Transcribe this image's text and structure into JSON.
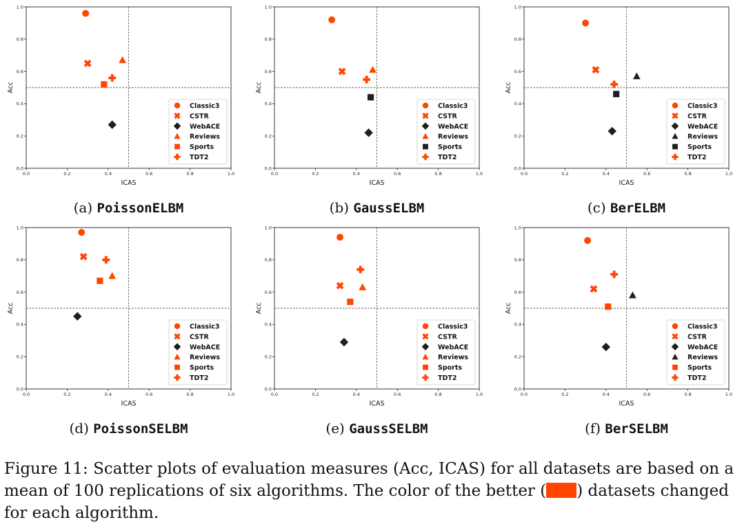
{
  "colors": {
    "better": "#ff4500",
    "worse": "#1f1f1f",
    "axis": "#222222",
    "guide": "#555555"
  },
  "legend_icons": [
    "circle",
    "x-mark",
    "diamond",
    "triangle",
    "square",
    "plus"
  ],
  "chart_data": [
    {
      "type": "scatter",
      "xlabel": "ICAS",
      "ylabel": "Acc",
      "xlim": [
        0,
        1
      ],
      "ylim": [
        0,
        1
      ],
      "xticks": [
        "0.0",
        "0.2",
        "0.4",
        "0.6",
        "0.8",
        "1.0"
      ],
      "yticks": [
        "0.0",
        "0.2",
        "0.4",
        "0.6",
        "0.8",
        "1.0"
      ],
      "thresholds": {
        "x": 0.5,
        "y": 0.5
      },
      "legend_position": "lower right",
      "subcaption": {
        "label": "(a)",
        "method": "PoissonELBM"
      },
      "series": [
        {
          "name": "Classic3",
          "marker": "circle",
          "x": 0.29,
          "y": 0.96,
          "color": "#ff4500"
        },
        {
          "name": "CSTR",
          "marker": "x",
          "x": 0.3,
          "y": 0.65,
          "color": "#ff4500"
        },
        {
          "name": "WebACE",
          "marker": "diamond",
          "x": 0.42,
          "y": 0.27,
          "color": "#1f1f1f"
        },
        {
          "name": "Reviews",
          "marker": "triangle",
          "x": 0.47,
          "y": 0.67,
          "color": "#ff4500"
        },
        {
          "name": "Sports",
          "marker": "square",
          "x": 0.38,
          "y": 0.52,
          "color": "#ff4500"
        },
        {
          "name": "TDT2",
          "marker": "plus",
          "x": 0.42,
          "y": 0.56,
          "color": "#ff4500"
        }
      ]
    },
    {
      "type": "scatter",
      "xlabel": "ICAS",
      "ylabel": "Acc",
      "xlim": [
        0,
        1
      ],
      "ylim": [
        0,
        1
      ],
      "xticks": [
        "0.0",
        "0.2",
        "0.4",
        "0.6",
        "0.8",
        "1.0"
      ],
      "yticks": [
        "0.0",
        "0.2",
        "0.4",
        "0.6",
        "0.8",
        "1.0"
      ],
      "thresholds": {
        "x": 0.5,
        "y": 0.5
      },
      "legend_position": "lower right",
      "subcaption": {
        "label": "(b)",
        "method": "GaussELBM"
      },
      "series": [
        {
          "name": "Classic3",
          "marker": "circle",
          "x": 0.28,
          "y": 0.92,
          "color": "#ff4500"
        },
        {
          "name": "CSTR",
          "marker": "x",
          "x": 0.33,
          "y": 0.6,
          "color": "#ff4500"
        },
        {
          "name": "WebACE",
          "marker": "diamond",
          "x": 0.46,
          "y": 0.22,
          "color": "#1f1f1f"
        },
        {
          "name": "Reviews",
          "marker": "triangle",
          "x": 0.48,
          "y": 0.61,
          "color": "#ff4500"
        },
        {
          "name": "Sports",
          "marker": "square",
          "x": 0.47,
          "y": 0.44,
          "color": "#1f1f1f"
        },
        {
          "name": "TDT2",
          "marker": "plus",
          "x": 0.45,
          "y": 0.55,
          "color": "#ff4500"
        }
      ]
    },
    {
      "type": "scatter",
      "xlabel": "ICAS",
      "ylabel": "Acc",
      "xlim": [
        0,
        1
      ],
      "ylim": [
        0,
        1
      ],
      "xticks": [
        "0.0",
        "0.2",
        "0.4",
        "0.6",
        "0.8",
        "1.0"
      ],
      "yticks": [
        "0.0",
        "0.2",
        "0.4",
        "0.6",
        "0.8",
        "1.0"
      ],
      "thresholds": {
        "x": 0.5,
        "y": 0.5
      },
      "legend_position": "lower right",
      "subcaption": {
        "label": "(c)",
        "method": "BerELBM"
      },
      "series": [
        {
          "name": "Classic3",
          "marker": "circle",
          "x": 0.3,
          "y": 0.9,
          "color": "#ff4500"
        },
        {
          "name": "CSTR",
          "marker": "x",
          "x": 0.35,
          "y": 0.61,
          "color": "#ff4500"
        },
        {
          "name": "WebACE",
          "marker": "diamond",
          "x": 0.43,
          "y": 0.23,
          "color": "#1f1f1f"
        },
        {
          "name": "Reviews",
          "marker": "triangle",
          "x": 0.55,
          "y": 0.57,
          "color": "#1f1f1f"
        },
        {
          "name": "Sports",
          "marker": "square",
          "x": 0.45,
          "y": 0.46,
          "color": "#1f1f1f"
        },
        {
          "name": "TDT2",
          "marker": "plus",
          "x": 0.44,
          "y": 0.52,
          "color": "#ff4500"
        }
      ]
    },
    {
      "type": "scatter",
      "xlabel": "ICAS",
      "ylabel": "Acc",
      "xlim": [
        0,
        1
      ],
      "ylim": [
        0,
        1
      ],
      "xticks": [
        "0.0",
        "0.2",
        "0.4",
        "0.6",
        "0.8",
        "1.0"
      ],
      "yticks": [
        "0.0",
        "0.2",
        "0.4",
        "0.6",
        "0.8",
        "1.0"
      ],
      "thresholds": {
        "x": 0.5,
        "y": 0.5
      },
      "legend_position": "lower right",
      "subcaption": {
        "label": "(d)",
        "method": "PoissonSELBM"
      },
      "series": [
        {
          "name": "Classic3",
          "marker": "circle",
          "x": 0.27,
          "y": 0.97,
          "color": "#ff4500"
        },
        {
          "name": "CSTR",
          "marker": "x",
          "x": 0.28,
          "y": 0.82,
          "color": "#ff4500"
        },
        {
          "name": "WebACE",
          "marker": "diamond",
          "x": 0.25,
          "y": 0.45,
          "color": "#1f1f1f"
        },
        {
          "name": "Reviews",
          "marker": "triangle",
          "x": 0.42,
          "y": 0.7,
          "color": "#ff4500"
        },
        {
          "name": "Sports",
          "marker": "square",
          "x": 0.36,
          "y": 0.67,
          "color": "#ff4500"
        },
        {
          "name": "TDT2",
          "marker": "plus",
          "x": 0.39,
          "y": 0.8,
          "color": "#ff4500"
        }
      ]
    },
    {
      "type": "scatter",
      "xlabel": "ICAS",
      "ylabel": "Acc",
      "xlim": [
        0,
        1
      ],
      "ylim": [
        0,
        1
      ],
      "xticks": [
        "0.0",
        "0.2",
        "0.4",
        "0.6",
        "0.8",
        "1.0"
      ],
      "yticks": [
        "0.0",
        "0.2",
        "0.4",
        "0.6",
        "0.8",
        "1.0"
      ],
      "thresholds": {
        "x": 0.5,
        "y": 0.5
      },
      "legend_position": "lower right",
      "subcaption": {
        "label": "(e)",
        "method": "GaussSELBM"
      },
      "series": [
        {
          "name": "Classic3",
          "marker": "circle",
          "x": 0.32,
          "y": 0.94,
          "color": "#ff4500"
        },
        {
          "name": "CSTR",
          "marker": "x",
          "x": 0.32,
          "y": 0.64,
          "color": "#ff4500"
        },
        {
          "name": "WebACE",
          "marker": "diamond",
          "x": 0.34,
          "y": 0.29,
          "color": "#1f1f1f"
        },
        {
          "name": "Reviews",
          "marker": "triangle",
          "x": 0.43,
          "y": 0.63,
          "color": "#ff4500"
        },
        {
          "name": "Sports",
          "marker": "square",
          "x": 0.37,
          "y": 0.54,
          "color": "#ff4500"
        },
        {
          "name": "TDT2",
          "marker": "plus",
          "x": 0.42,
          "y": 0.74,
          "color": "#ff4500"
        }
      ]
    },
    {
      "type": "scatter",
      "xlabel": "ICAS",
      "ylabel": "Acc",
      "xlim": [
        0,
        1
      ],
      "ylim": [
        0,
        1
      ],
      "xticks": [
        "0.0",
        "0.2",
        "0.4",
        "0.6",
        "0.8",
        "1.0"
      ],
      "yticks": [
        "0.0",
        "0.2",
        "0.4",
        "0.6",
        "0.8",
        "1.0"
      ],
      "thresholds": {
        "x": 0.5,
        "y": 0.5
      },
      "legend_position": "lower right",
      "subcaption": {
        "label": "(f)",
        "method": "BerSELBM"
      },
      "series": [
        {
          "name": "Classic3",
          "marker": "circle",
          "x": 0.31,
          "y": 0.92,
          "color": "#ff4500"
        },
        {
          "name": "CSTR",
          "marker": "x",
          "x": 0.34,
          "y": 0.62,
          "color": "#ff4500"
        },
        {
          "name": "WebACE",
          "marker": "diamond",
          "x": 0.4,
          "y": 0.26,
          "color": "#1f1f1f"
        },
        {
          "name": "Reviews",
          "marker": "triangle",
          "x": 0.53,
          "y": 0.58,
          "color": "#1f1f1f"
        },
        {
          "name": "Sports",
          "marker": "square",
          "x": 0.41,
          "y": 0.51,
          "color": "#ff4500"
        },
        {
          "name": "TDT2",
          "marker": "plus",
          "x": 0.44,
          "y": 0.71,
          "color": "#ff4500"
        }
      ]
    }
  ],
  "caption": {
    "before": "Figure 11:  Scatter plots of evaluation measures (Acc, ICAS) for all datasets are based on a mean of 100 replications of six algorithms.  The color of the better (",
    "after": ") datasets changed for each algorithm."
  }
}
